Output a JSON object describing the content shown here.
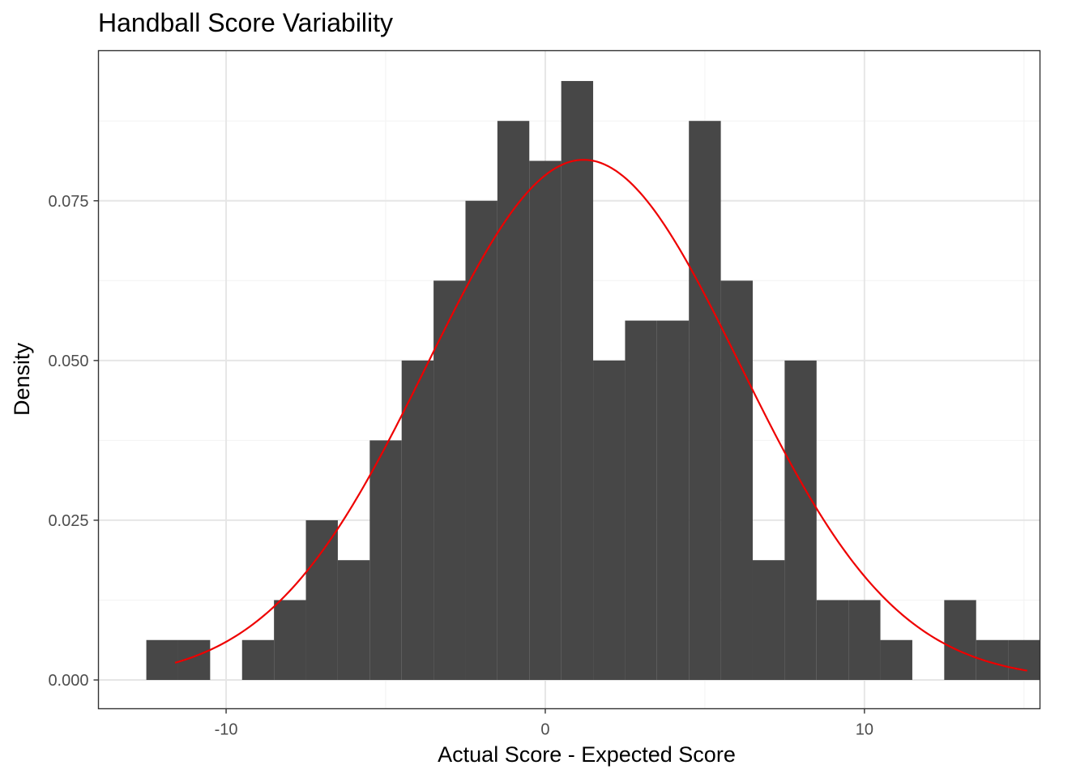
{
  "chart_data": {
    "type": "bar",
    "title": "Handball Score Variability",
    "xlabel": "Actual Score - Expected Score",
    "ylabel": "Density",
    "xlim": [
      -14,
      15.5
    ],
    "ylim": [
      -0.0045,
      0.0985
    ],
    "x_ticks": [
      -10,
      0,
      10
    ],
    "x_tick_labels": [
      "-10",
      "0",
      "10"
    ],
    "y_ticks": [
      0,
      0.025,
      0.05,
      0.075
    ],
    "y_tick_labels": [
      "0.000",
      "0.025",
      "0.050",
      "0.075"
    ],
    "grid": true,
    "bin_width": 1,
    "bins": [
      {
        "x": -12,
        "density": 0.00625
      },
      {
        "x": -11,
        "density": 0.00625
      },
      {
        "x": -10,
        "density": 0
      },
      {
        "x": -9,
        "density": 0.00625
      },
      {
        "x": -8,
        "density": 0.0125
      },
      {
        "x": -7,
        "density": 0.025
      },
      {
        "x": -6,
        "density": 0.01875
      },
      {
        "x": -5,
        "density": 0.0375
      },
      {
        "x": -4,
        "density": 0.05
      },
      {
        "x": -3,
        "density": 0.0625
      },
      {
        "x": -2,
        "density": 0.075
      },
      {
        "x": -1,
        "density": 0.0875
      },
      {
        "x": 0,
        "density": 0.08125
      },
      {
        "x": 1,
        "density": 0.09375
      },
      {
        "x": 2,
        "density": 0.05
      },
      {
        "x": 3,
        "density": 0.05625
      },
      {
        "x": 4,
        "density": 0.05625
      },
      {
        "x": 5,
        "density": 0.0875
      },
      {
        "x": 6,
        "density": 0.0625
      },
      {
        "x": 7,
        "density": 0.01875
      },
      {
        "x": 8,
        "density": 0.05
      },
      {
        "x": 9,
        "density": 0.0125
      },
      {
        "x": 10,
        "density": 0.0125
      },
      {
        "x": 11,
        "density": 0.00625
      },
      {
        "x": 12,
        "density": 0
      },
      {
        "x": 13,
        "density": 0.0125
      },
      {
        "x": 14,
        "density": 0.00625
      },
      {
        "x": 15,
        "density": 0.00625
      }
    ],
    "normal_curve": {
      "mean": 1.2,
      "sd": 4.9,
      "x_range": [
        -11.6,
        15.1
      ]
    },
    "colors": {
      "bars": "#474747",
      "curve": "#ee0000",
      "grid_major": "#e6e6e6",
      "grid_minor": "#f2f2f2",
      "panel_border": "#333333",
      "tick_label": "#4d4d4d"
    }
  }
}
